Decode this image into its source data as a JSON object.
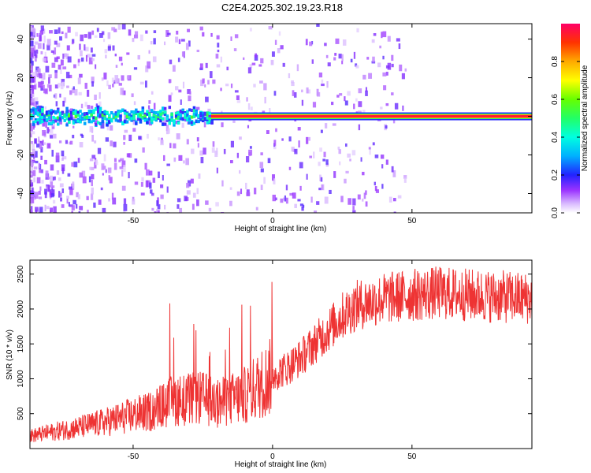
{
  "figure_title": "C2E4.2025.302.19.23.R18",
  "chart_data": [
    {
      "type": "heatmap",
      "xlabel": "Height of straight line (km)",
      "ylabel": "Frequency (Hz)",
      "xlim": [
        -87,
        93
      ],
      "ylim": [
        -50,
        48
      ],
      "xticks": [
        "-50",
        "0",
        "50"
      ],
      "xtick_values": [
        -50,
        0,
        50
      ],
      "yticks": [
        "-40",
        "-20",
        "0",
        "20",
        "40"
      ],
      "ytick_values": [
        -40,
        -20,
        0,
        20,
        40
      ],
      "colorbar": {
        "label": "Normalized spectral amplitude",
        "ticks": [
          "0.0",
          "0.2",
          "0.4",
          "0.6",
          "0.8"
        ],
        "tick_values": [
          0.0,
          0.2,
          0.4,
          0.6,
          0.8
        ],
        "range": [
          0,
          1
        ]
      },
      "description_values": {
        "dominant_line_frequency_hz": 0,
        "strong_line_start_km": -22
      }
    },
    {
      "type": "line",
      "xlabel": "Height of straight line (km)",
      "ylabel": "SNR (10 * v/v)",
      "xlim": [
        -87,
        93
      ],
      "ylim": [
        0,
        2700
      ],
      "xticks": [
        "-50",
        "0",
        "50"
      ],
      "xtick_values": [
        -50,
        0,
        50
      ],
      "yticks": [
        "500",
        "1000",
        "1500",
        "2000",
        "2500"
      ],
      "ytick_values": [
        500,
        1000,
        1500,
        2000,
        2500
      ],
      "color": "#ee3333",
      "series_envelope": {
        "x": [
          -87,
          -80,
          -70,
          -60,
          -50,
          -45,
          -40,
          -35,
          -30,
          -25,
          -20,
          -15,
          -10,
          -5,
          0,
          5,
          10,
          15,
          20,
          25,
          30,
          40,
          50,
          60,
          70,
          80,
          93
        ],
        "mean": [
          180,
          230,
          300,
          380,
          480,
          520,
          600,
          700,
          700,
          720,
          640,
          700,
          760,
          900,
          1050,
          1150,
          1300,
          1500,
          1700,
          1900,
          2050,
          2150,
          2200,
          2230,
          2200,
          2180,
          2150
        ]
      }
    }
  ]
}
